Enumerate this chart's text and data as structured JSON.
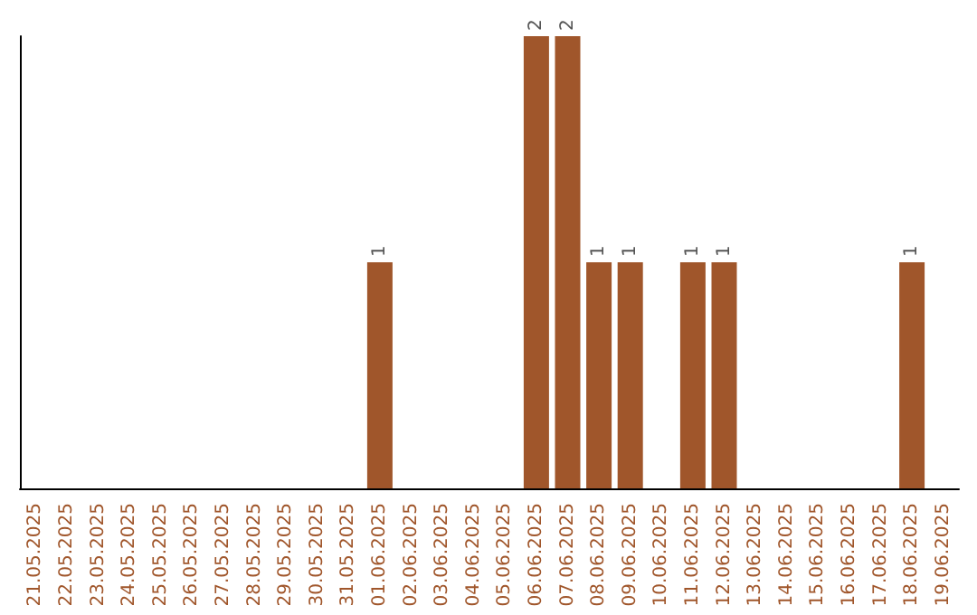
{
  "chart_data": {
    "type": "bar",
    "categories": [
      "21.05.2025",
      "22.05.2025",
      "23.05.2025",
      "24.05.2025",
      "25.05.2025",
      "26.05.2025",
      "27.05.2025",
      "28.05.2025",
      "29.05.2025",
      "30.05.2025",
      "31.05.2025",
      "01.06.2025",
      "02.06.2025",
      "03.06.2025",
      "04.06.2025",
      "05.06.2025",
      "06.06.2025",
      "07.06.2025",
      "08.06.2025",
      "09.06.2025",
      "10.06.2025",
      "11.06.2025",
      "12.06.2025",
      "13.06.2025",
      "14.06.2025",
      "15.06.2025",
      "16.06.2025",
      "17.06.2025",
      "18.06.2025",
      "19.06.2025"
    ],
    "values": [
      0,
      0,
      0,
      0,
      0,
      0,
      0,
      0,
      0,
      0,
      0,
      1,
      0,
      0,
      0,
      0,
      2,
      2,
      1,
      1,
      0,
      1,
      1,
      0,
      0,
      0,
      0,
      0,
      1,
      0
    ],
    "value_labels": [
      null,
      null,
      null,
      null,
      null,
      null,
      null,
      null,
      null,
      null,
      null,
      "1",
      null,
      null,
      null,
      null,
      "2",
      "2",
      "1",
      "1",
      null,
      "1",
      "1",
      null,
      null,
      null,
      null,
      null,
      "1",
      null
    ],
    "color": "#a0562b",
    "tick_labels": "x"
  }
}
